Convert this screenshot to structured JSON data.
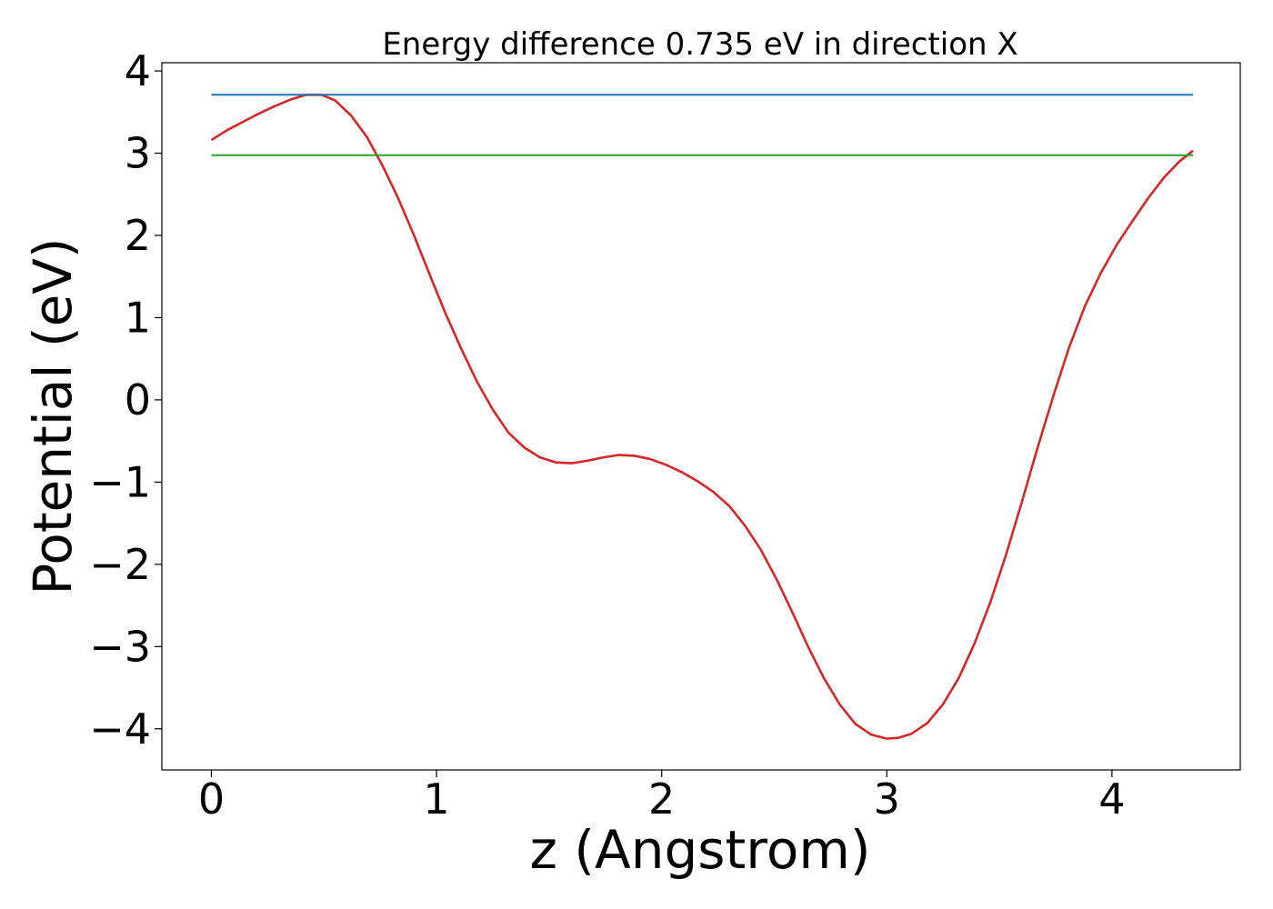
{
  "chart_data": {
    "type": "line",
    "title": "Energy difference 0.735 eV in direction X",
    "xlabel": "z (Angstrom)",
    "ylabel": "Potential (eV)",
    "xlim": [
      -0.22,
      4.57
    ],
    "ylim": [
      -4.5,
      4.1
    ],
    "xticks": [
      0,
      1,
      2,
      3,
      4
    ],
    "xtick_labels": [
      "0",
      "1",
      "2",
      "3",
      "4"
    ],
    "yticks": [
      4,
      3,
      2,
      1,
      0,
      -1,
      -2,
      -3,
      -4
    ],
    "ytick_labels": [
      "4",
      "3",
      "2",
      "1",
      "0",
      "−1",
      "−2",
      "−3",
      "−4"
    ],
    "grid": false,
    "series": [
      {
        "color": "#d62728",
        "x": [
          0,
          0.07,
          0.14,
          0.21,
          0.28,
          0.35,
          0.42,
          0.49,
          0.55,
          0.62,
          0.69,
          0.76,
          0.83,
          0.9,
          0.97,
          1.04,
          1.11,
          1.18,
          1.25,
          1.32,
          1.39,
          1.46,
          1.53,
          1.6,
          1.67,
          1.74,
          1.81,
          1.88,
          1.95,
          2.02,
          2.09,
          2.16,
          2.23,
          2.3,
          2.37,
          2.44,
          2.51,
          2.58,
          2.65,
          2.72,
          2.79,
          2.86,
          2.93,
          3.0,
          3.05,
          3.11,
          3.18,
          3.25,
          3.32,
          3.39,
          3.46,
          3.53,
          3.6,
          3.67,
          3.74,
          3.81,
          3.88,
          3.95,
          4.02,
          4.09,
          4.16,
          4.23,
          4.3,
          4.36
        ],
        "y": [
          3.16,
          3.28,
          3.38,
          3.48,
          3.57,
          3.65,
          3.71,
          3.71,
          3.64,
          3.46,
          3.2,
          2.85,
          2.45,
          2.0,
          1.52,
          1.05,
          0.62,
          0.22,
          -0.12,
          -0.4,
          -0.58,
          -0.7,
          -0.76,
          -0.77,
          -0.74,
          -0.7,
          -0.67,
          -0.68,
          -0.72,
          -0.79,
          -0.88,
          -0.99,
          -1.12,
          -1.29,
          -1.53,
          -1.82,
          -2.18,
          -2.58,
          -3.0,
          -3.38,
          -3.7,
          -3.94,
          -4.07,
          -4.12,
          -4.11,
          -4.06,
          -3.93,
          -3.7,
          -3.38,
          -2.96,
          -2.46,
          -1.88,
          -1.24,
          -0.58,
          0.05,
          0.64,
          1.14,
          1.54,
          1.88,
          2.17,
          2.45,
          2.7,
          2.9,
          3.03
        ]
      },
      {
        "color": "#1f77b4",
        "x": [
          0,
          4.36
        ],
        "y": [
          3.71,
          3.71
        ]
      },
      {
        "color": "#2ca02c",
        "x": [
          0,
          4.36
        ],
        "y": [
          2.975,
          2.975
        ]
      }
    ]
  }
}
